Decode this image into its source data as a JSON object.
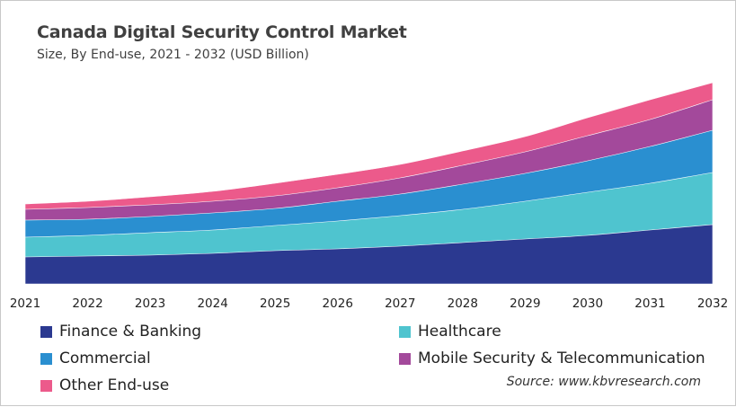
{
  "title": "Canada Digital Security Control Market",
  "subtitle": "Size, By End-use, 2021 - 2032 (USD Billion)",
  "source": "Source: www.kbvresearch.com",
  "chart_data": {
    "type": "area",
    "stacked": true,
    "title": "Canada Digital Security Control Market",
    "subtitle": "Size, By End-use, 2021 - 2032 (USD Billion)",
    "x": [
      "2021",
      "2022",
      "2023",
      "2024",
      "2025",
      "2026",
      "2027",
      "2028",
      "2029",
      "2030",
      "2031",
      "2032"
    ],
    "ylim": [
      0,
      230
    ],
    "grid": false,
    "y_axis_shown": false,
    "legend_position": "bottom",
    "series": [
      {
        "name": "Finance & Banking",
        "color": "#2b3990",
        "values": [
          30,
          31,
          32,
          34,
          37,
          39,
          42,
          46,
          50,
          54,
          60,
          66
        ]
      },
      {
        "name": "Healthcare",
        "color": "#4fc4cf",
        "values": [
          22,
          23,
          25,
          26,
          28,
          31,
          34,
          37,
          42,
          48,
          52,
          58
        ]
      },
      {
        "name": "Commercial",
        "color": "#2a8fd0",
        "values": [
          19,
          18,
          18,
          19,
          19,
          22,
          24,
          28,
          31,
          35,
          41,
          47
        ]
      },
      {
        "name": "Mobile Security & Telecommunication",
        "color": "#a3499b",
        "values": [
          12,
          13,
          13,
          13,
          14,
          15,
          18,
          21,
          24,
          28,
          30,
          34
        ]
      },
      {
        "name": "Other End-use",
        "color": "#ec5a8b",
        "values": [
          6,
          7,
          9,
          11,
          14,
          15,
          15,
          16,
          17,
          20,
          22,
          19
        ]
      }
    ]
  }
}
